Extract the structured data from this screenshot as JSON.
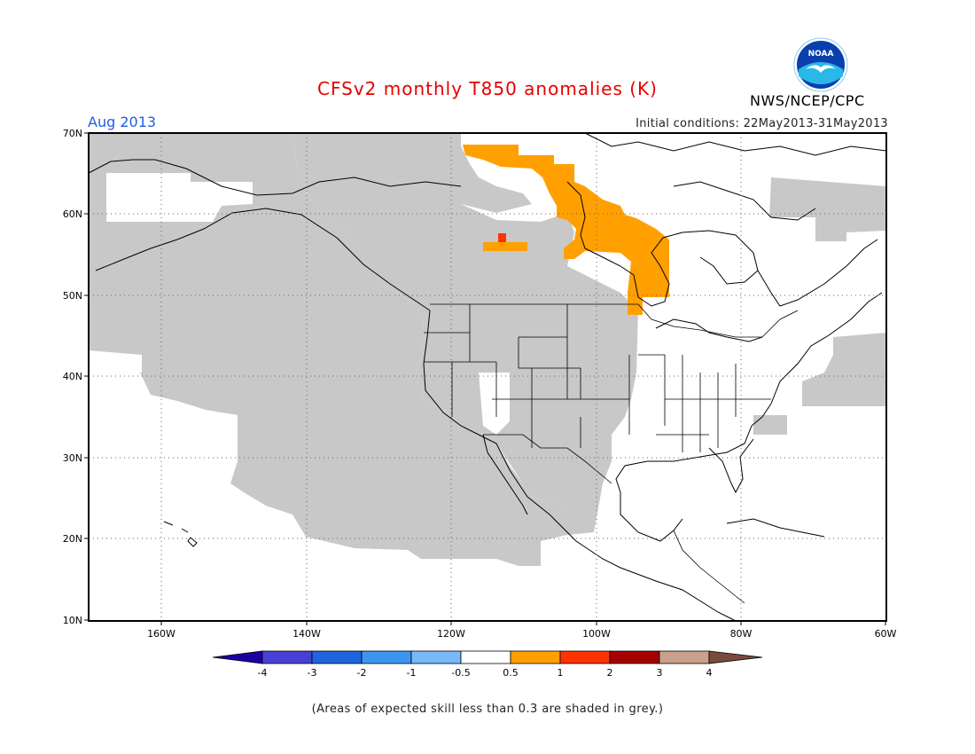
{
  "header": {
    "title": "CFSv2 monthly T850 anomalies (K)",
    "valid_month": "Aug 2013",
    "initial_conditions": "Initial conditions: 22May2013-31May2013",
    "agency": "NWS/NCEP/CPC",
    "logo_text": "NOAA"
  },
  "map": {
    "region": "North America",
    "lat_labels": [
      "70N",
      "60N",
      "50N",
      "40N",
      "30N",
      "20N",
      "10N"
    ],
    "lon_labels": [
      "160W",
      "140W",
      "120W",
      "100W",
      "80W",
      "60W"
    ],
    "grid": "dotted",
    "shading": [
      {
        "area": "Hudson Bay / central Canada",
        "category": "0.5 to 1",
        "color": "#ffa000"
      },
      {
        "area": "northern Saskatchewan spot",
        "category": "1 to 2",
        "color": "#ff3300"
      },
      {
        "area": "western North America, northeast Pacific, Alaska, Labrador Sea, western Atlantic",
        "category": "low skill",
        "color": "#c8c8c8"
      }
    ]
  },
  "colorbar": {
    "tick_labels": [
      "-4",
      "-3",
      "-2",
      "-1",
      "-0.5",
      "0.5",
      "1",
      "2",
      "3",
      "4"
    ],
    "colors": [
      "#1e00a0",
      "#4a3fd4",
      "#1e64dc",
      "#3c96f0",
      "#78b9fa",
      "#ffffff",
      "#ffa000",
      "#ff3300",
      "#a50000",
      "#c8a08c",
      "#7a4a3a"
    ]
  },
  "footer": {
    "note": "(Areas of expected skill less than 0.3 are shaded in grey.)"
  }
}
